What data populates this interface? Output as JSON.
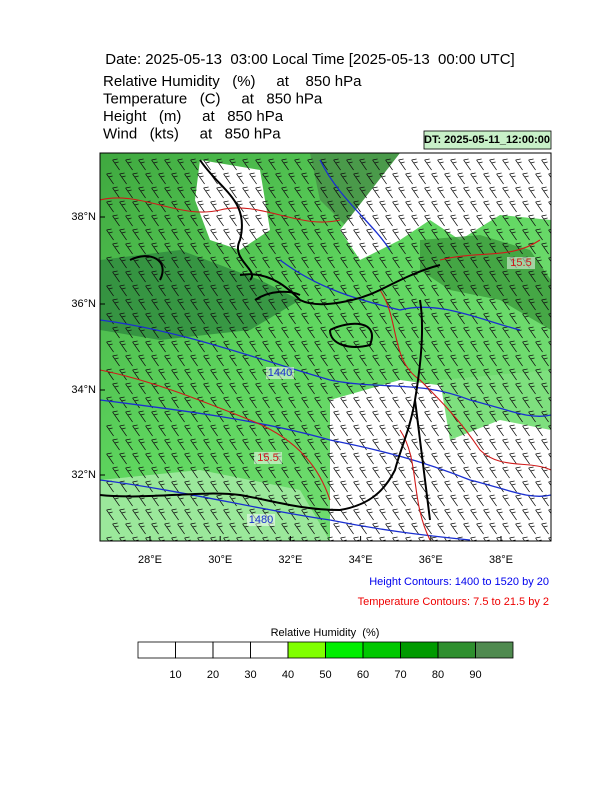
{
  "header": {
    "title": "Date: 2025-05-13  03:00 Local Time [2025-05-13  00:00 UTC]",
    "fields": [
      "Relative Humidity   (%)     at    850 hPa",
      "Temperature   (C)     at   850 hPa",
      "Height   (m)     at   850 hPa",
      "Wind   (kts)     at   850 hPa"
    ],
    "dt": "DT: 2025-05-11_12:00:00"
  },
  "map": {
    "lat_labels": [
      "38°N",
      "36°N",
      "34°N",
      "32°N"
    ],
    "lon_labels": [
      "28°E",
      "30°E",
      "32°E",
      "34°E",
      "36°E",
      "38°E"
    ],
    "contour_labels": [
      {
        "text": "1440",
        "kind": "height"
      },
      {
        "text": "15.5",
        "kind": "temperature"
      },
      {
        "text": "1480",
        "kind": "height"
      },
      {
        "text": "15.5",
        "kind": "temperature"
      }
    ]
  },
  "notes": [
    {
      "text": "Height Contours: 1400 to 1520 by 20",
      "color": "#0000ee"
    },
    {
      "text": "Temperature Contours: 7.5 to 21.5 by 2",
      "color": "#ee0000"
    }
  ],
  "colorbar": {
    "title": "Relative Humidity  (%)",
    "levels": [
      10,
      20,
      30,
      40,
      50,
      60,
      70,
      80,
      90
    ],
    "colors": [
      "#ffffff",
      "#ffffff",
      "#ffffff",
      "#ffffff",
      "#80ff00",
      "#00ee00",
      "#00c800",
      "#009a00",
      "#2e8f2e",
      "#4f8a4f"
    ]
  }
}
